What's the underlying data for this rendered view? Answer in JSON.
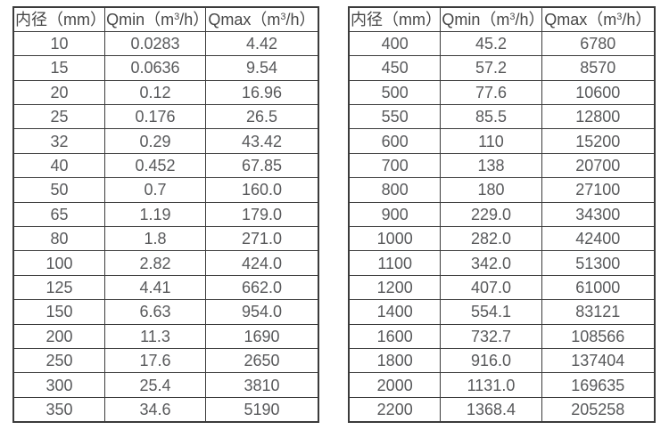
{
  "page": {
    "background": "#ffffff",
    "border_color": "#3b3b3b",
    "text_color": "#58595b"
  },
  "tables": [
    {
      "name": "flow-spec-table-small-diameters",
      "headers": [
        {
          "text": "内径（mm）"
        },
        {
          "pre": "Qmin（m",
          "sup": "3",
          "post": "/h）"
        },
        {
          "pre": "Qmax（m",
          "sup": "3",
          "post": "/h）"
        }
      ],
      "rows": [
        [
          "10",
          "0.0283",
          "4.42"
        ],
        [
          "15",
          "0.0636",
          "9.54"
        ],
        [
          "20",
          "0.12",
          "16.96"
        ],
        [
          "25",
          "0.176",
          "26.5"
        ],
        [
          "32",
          "0.29",
          "43.42"
        ],
        [
          "40",
          "0.452",
          "67.85"
        ],
        [
          "50",
          "0.7",
          "160.0"
        ],
        [
          "65",
          "1.19",
          "179.0"
        ],
        [
          "80",
          "1.8",
          "271.0"
        ],
        [
          "100",
          "2.82",
          "424.0"
        ],
        [
          "125",
          "4.41",
          "662.0"
        ],
        [
          "150",
          "6.63",
          "954.0"
        ],
        [
          "200",
          "11.3",
          "1690"
        ],
        [
          "250",
          "17.6",
          "2650"
        ],
        [
          "300",
          "25.4",
          "3810"
        ],
        [
          "350",
          "34.6",
          "5190"
        ]
      ]
    },
    {
      "name": "flow-spec-table-large-diameters",
      "headers": [
        {
          "text": "内径（mm）"
        },
        {
          "pre": "Qmin（m",
          "sup": "3",
          "post": "/h）"
        },
        {
          "pre": "Qmax（m",
          "sup": "3",
          "post": "/h）"
        }
      ],
      "rows": [
        [
          "400",
          "45.2",
          "6780"
        ],
        [
          "450",
          "57.2",
          "8570"
        ],
        [
          "500",
          "77.6",
          "10600"
        ],
        [
          "550",
          "85.5",
          "12800"
        ],
        [
          "600",
          "110",
          "15200"
        ],
        [
          "700",
          "138",
          "20700"
        ],
        [
          "800",
          "180",
          "27100"
        ],
        [
          "900",
          "229.0",
          "34300"
        ],
        [
          "1000",
          "282.0",
          "42400"
        ],
        [
          "1100",
          "342.0",
          "51300"
        ],
        [
          "1200",
          "407.0",
          "61000"
        ],
        [
          "1400",
          "554.1",
          "83121"
        ],
        [
          "1600",
          "732.7",
          "108566"
        ],
        [
          "1800",
          "916.0",
          "137404"
        ],
        [
          "2000",
          "1131.0",
          "169635"
        ],
        [
          "2200",
          "1368.4",
          "205258"
        ]
      ]
    }
  ]
}
